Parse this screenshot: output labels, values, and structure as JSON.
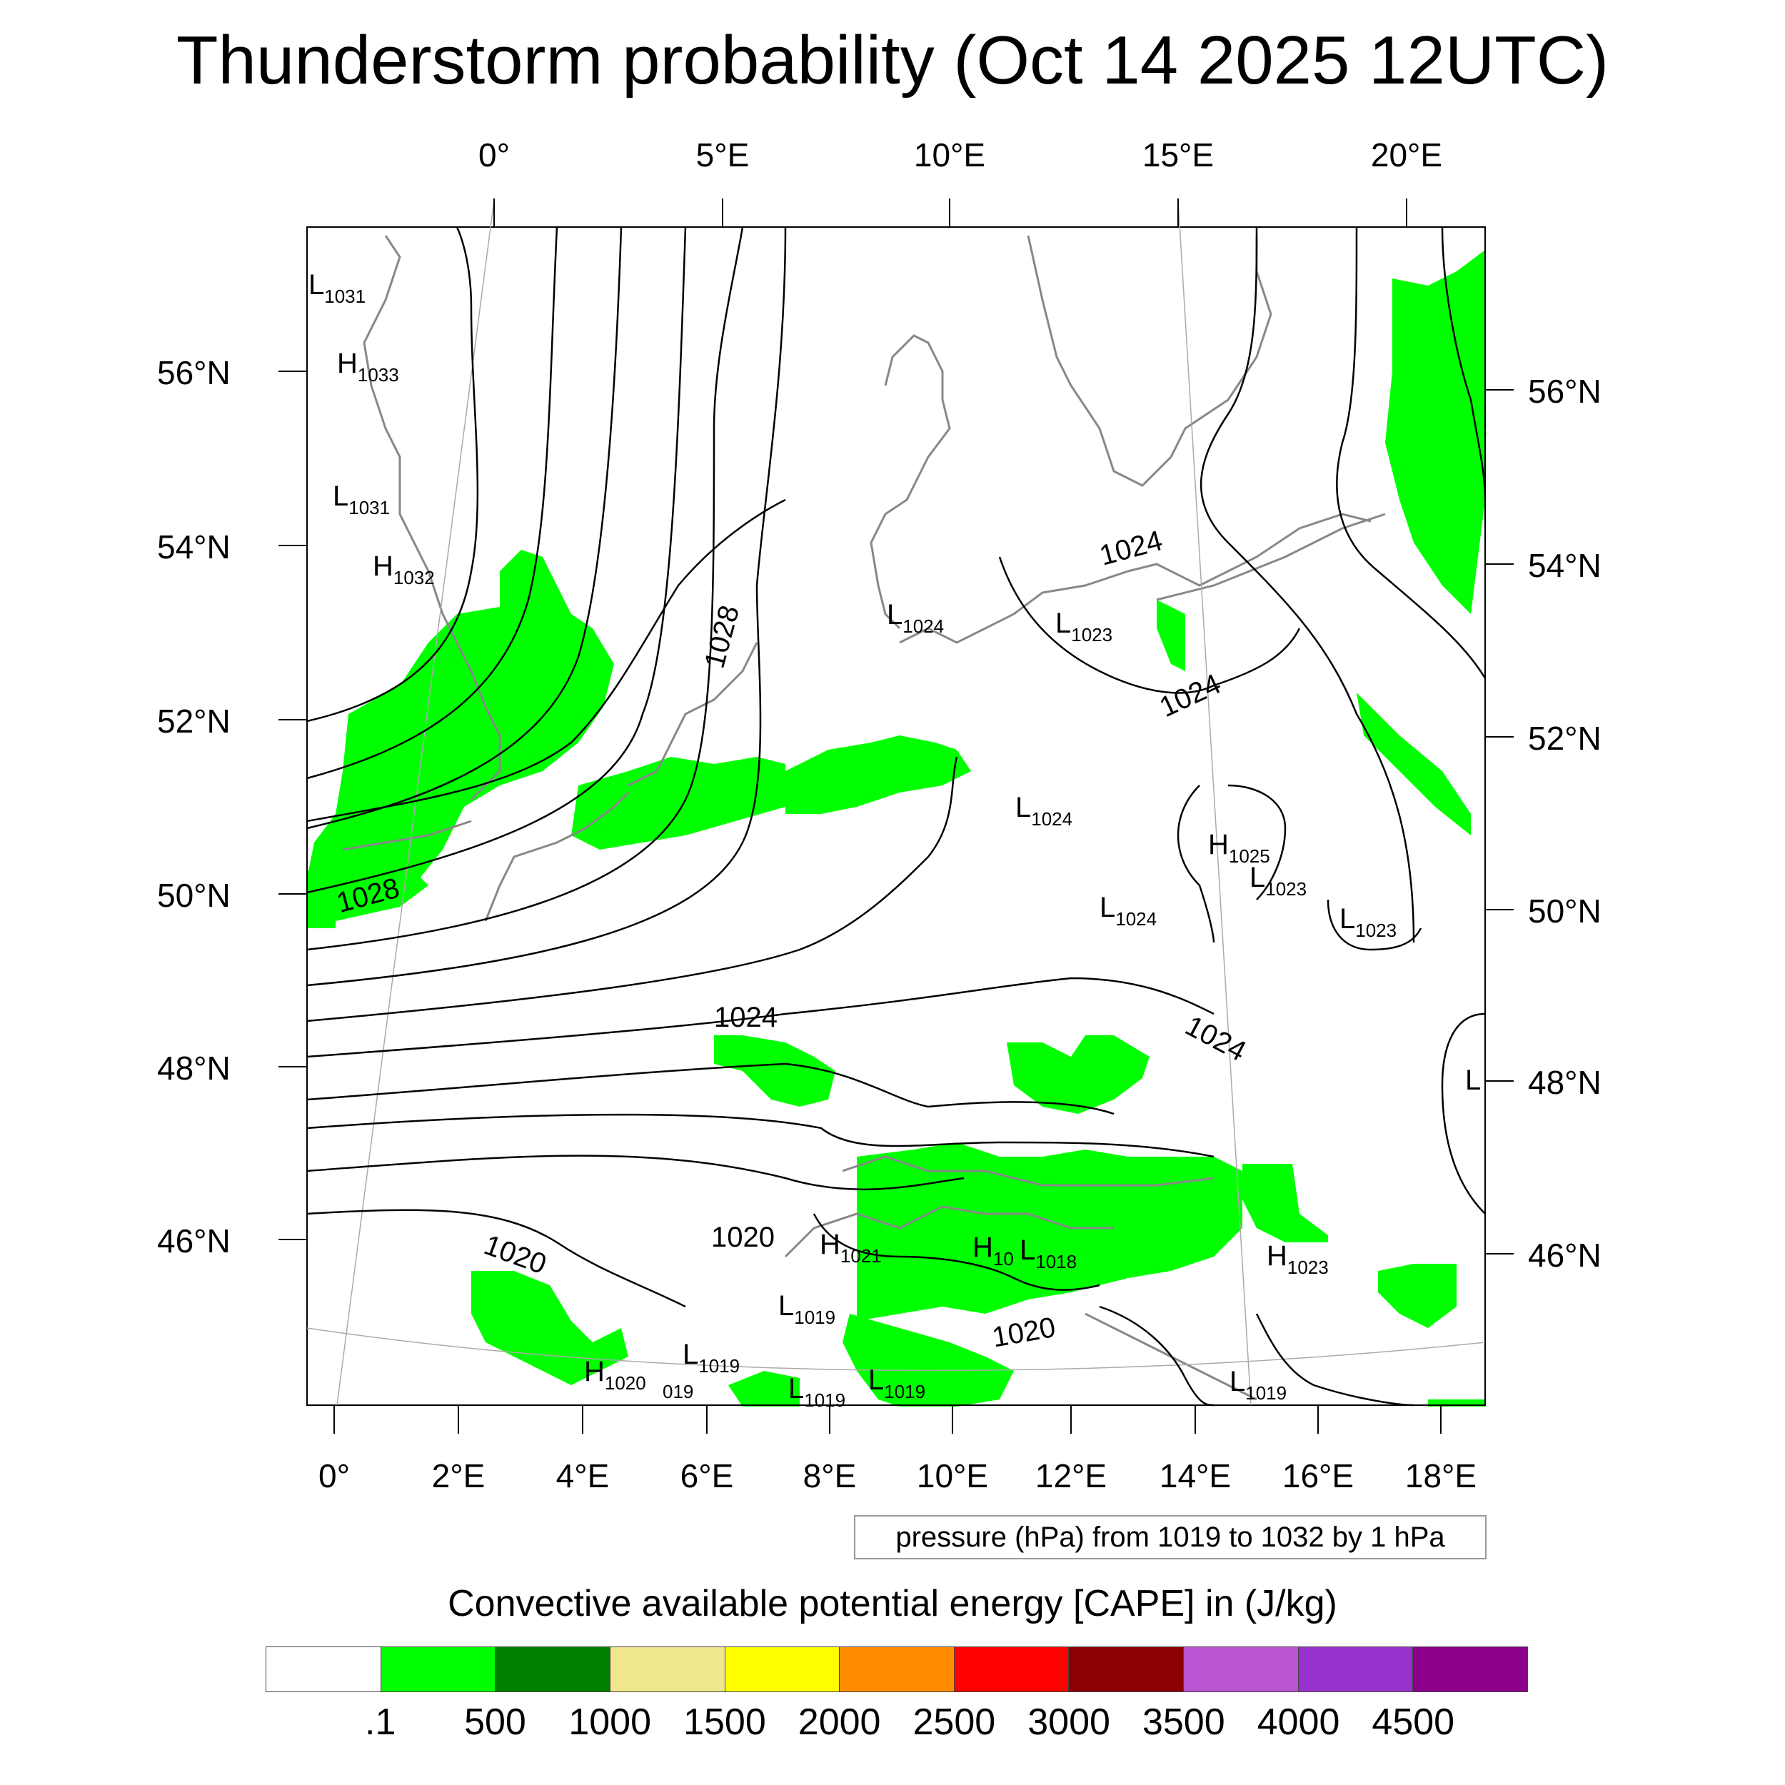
{
  "title": "Thunderstorm probability (Oct 14 2025 12UTC)",
  "top_axis_labels": [
    "0°",
    "5°E",
    "10°E",
    "15°E",
    "20°E"
  ],
  "bottom_axis_labels": [
    "0°",
    "2°E",
    "4°E",
    "6°E",
    "8°E",
    "10°E",
    "12°E",
    "14°E",
    "16°E",
    "18°E"
  ],
  "left_axis_labels": [
    "56°N",
    "54°N",
    "52°N",
    "50°N",
    "48°N",
    "46°N"
  ],
  "right_axis_labels": [
    "56°N",
    "54°N",
    "52°N",
    "50°N",
    "48°N",
    "46°N"
  ],
  "pressure_note": "pressure (hPa) from 1019 to 1032 by 1 hPa",
  "colorbar_title": "Convective available potential energy [CAPE] in (J/kg)",
  "colorbar_colors": [
    "#ffffff",
    "#00ff00",
    "#008000",
    "#f0e68c",
    "#ffff00",
    "#ff8c00",
    "#ff0000",
    "#8b0000",
    "#ba55d3",
    "#9932cc",
    "#8b008b"
  ],
  "colorbar_ticks": [
    ".1",
    "500",
    "1000",
    "1500",
    "2000",
    "2500",
    "3000",
    "3500",
    "4000",
    "4500"
  ],
  "contour_labels": [
    "1028",
    "1028",
    "1024",
    "1024",
    "1024",
    "1024",
    "1020",
    "1020",
    "1020"
  ],
  "pressure_centers": [
    {
      "type": "L",
      "value": "1031"
    },
    {
      "type": "H",
      "value": "1033"
    },
    {
      "type": "L",
      "value": "1031"
    },
    {
      "type": "H",
      "value": "1032"
    },
    {
      "type": "L",
      "value": "1024"
    },
    {
      "type": "L",
      "value": "1023"
    },
    {
      "type": "L",
      "value": "1024"
    },
    {
      "type": "H",
      "value": "1025"
    },
    {
      "type": "L",
      "value": "1023"
    },
    {
      "type": "L",
      "value": "1024"
    },
    {
      "type": "L",
      "value": "1023"
    },
    {
      "type": "H",
      "value": "1021"
    },
    {
      "type": "H",
      "value": "10"
    },
    {
      "type": "L",
      "value": "1018"
    },
    {
      "type": "L",
      "value": "1019"
    },
    {
      "type": "H",
      "value": "1023"
    },
    {
      "type": "L",
      "value": "1019"
    },
    {
      "type": "H",
      "value": "1020"
    },
    {
      "type": "L",
      "value": "1019"
    },
    {
      "type": "L",
      "value": "1019"
    },
    {
      "type": "L",
      "value": "1019"
    },
    {
      "type": "L",
      "value": ""
    }
  ],
  "partial_label": "019"
}
